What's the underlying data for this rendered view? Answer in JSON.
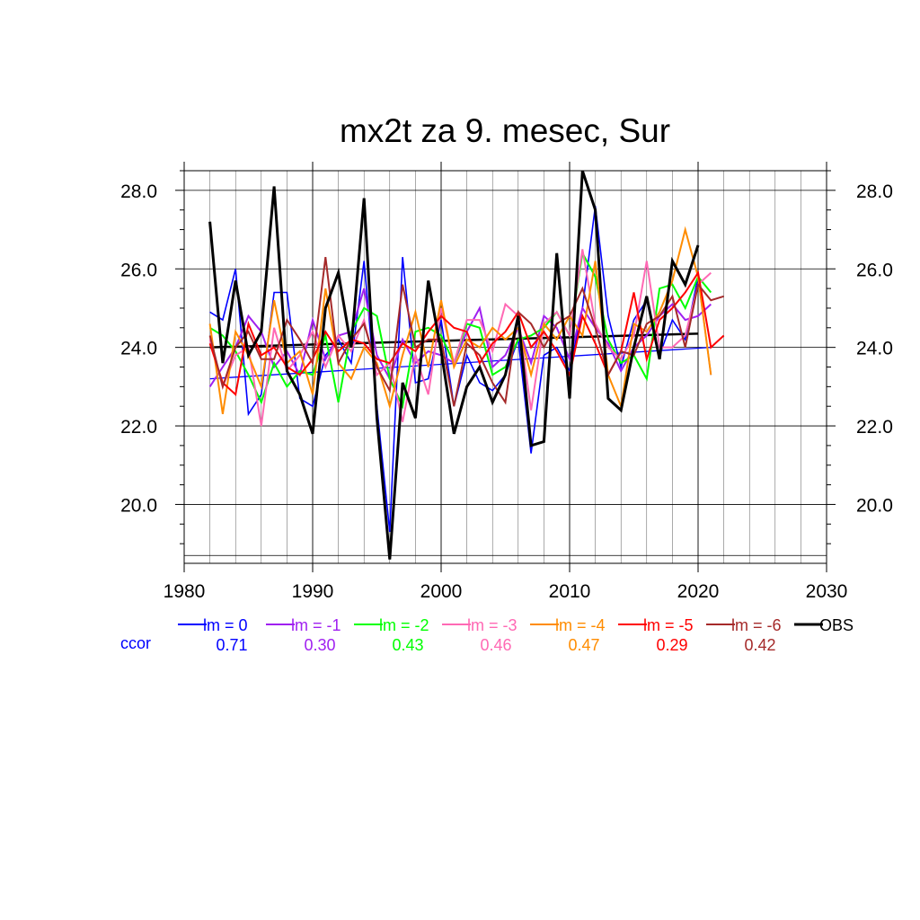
{
  "chart_data": {
    "type": "line",
    "title": "mx2t za 9. mesec, Sur",
    "xlabel": "",
    "ylabel": "",
    "xlim": [
      1980,
      2030
    ],
    "ylim": [
      18.5,
      28.5
    ],
    "x_ticks": [
      "1980",
      "1990",
      "2000",
      "2010",
      "2020",
      "2030"
    ],
    "y_ticks": [
      "20.0",
      "22.0",
      "24.0",
      "26.0",
      "28.0"
    ],
    "grid": true,
    "legend_placement": "bottom",
    "ccor_label": "ccor",
    "series": [
      {
        "name": "lm = 0",
        "color": "#0000ff",
        "ccor": "0.71",
        "x": [
          1982,
          1983,
          1984,
          1985,
          1986,
          1987,
          1988,
          1989,
          1990,
          1991,
          1992,
          1993,
          1994,
          1995,
          1996,
          1997,
          1998,
          1999,
          2000,
          2001,
          2002,
          2003,
          2004,
          2005,
          2006,
          2007,
          2008,
          2009,
          2010,
          2011,
          2012,
          2013,
          2014,
          2015,
          2016,
          2017,
          2018,
          2019,
          2020,
          2021
        ],
        "values": [
          24.9,
          24.7,
          26.0,
          22.3,
          22.8,
          25.4,
          25.4,
          22.7,
          22.5,
          23.8,
          24.2,
          23.6,
          26.2,
          22.5,
          19.3,
          26.3,
          23.1,
          23.2,
          24.7,
          22.5,
          23.8,
          23.1,
          22.9,
          23.3,
          24.2,
          21.3,
          23.8,
          24.0,
          23.4,
          25.0,
          27.6,
          24.8,
          23.5,
          24.7,
          25.2,
          23.8,
          24.7,
          24.2,
          25.8,
          23.3
        ]
      },
      {
        "name": "lm = -1",
        "color": "#a020f0",
        "ccor": "0.30",
        "x": [
          1982,
          1983,
          1984,
          1985,
          1986,
          1987,
          1988,
          1989,
          1990,
          1991,
          1992,
          1993,
          1994,
          1995,
          1996,
          1997,
          1998,
          1999,
          2000,
          2001,
          2002,
          2003,
          2004,
          2005,
          2006,
          2007,
          2008,
          2009,
          2010,
          2011,
          2012,
          2013,
          2014,
          2015,
          2016,
          2017,
          2018,
          2019,
          2020,
          2021
        ],
        "values": [
          23.0,
          23.5,
          24.0,
          24.8,
          24.4,
          23.5,
          23.9,
          23.3,
          24.7,
          23.7,
          24.3,
          24.4,
          25.5,
          23.8,
          23.2,
          24.2,
          23.6,
          23.9,
          23.8,
          23.6,
          24.4,
          25.0,
          23.5,
          23.8,
          24.5,
          23.6,
          24.8,
          24.5,
          23.7,
          25.0,
          24.5,
          24.1,
          23.4,
          24.0,
          24.3,
          24.8,
          25.1,
          24.7,
          24.8,
          25.1
        ]
      },
      {
        "name": "lm = -2",
        "color": "#00ff00",
        "ccor": "0.43",
        "x": [
          1982,
          1983,
          1984,
          1985,
          1986,
          1987,
          1988,
          1989,
          1990,
          1991,
          1992,
          1993,
          1994,
          1995,
          1996,
          1997,
          1998,
          1999,
          2000,
          2001,
          2002,
          2003,
          2004,
          2005,
          2006,
          2007,
          2008,
          2009,
          2010,
          2011,
          2012,
          2013,
          2014,
          2015,
          2016,
          2017,
          2018,
          2019,
          2020,
          2021
        ],
        "values": [
          24.5,
          24.3,
          23.9,
          23.3,
          22.6,
          23.6,
          23.0,
          23.4,
          23.3,
          24.3,
          22.6,
          24.4,
          25.0,
          24.8,
          23.2,
          22.5,
          24.4,
          24.5,
          24.3,
          23.6,
          24.6,
          24.5,
          23.3,
          23.5,
          24.2,
          24.3,
          24.5,
          24.9,
          24.3,
          26.4,
          25.8,
          24.2,
          23.6,
          23.8,
          23.2,
          25.5,
          25.6,
          25.0,
          25.8,
          25.4
        ]
      },
      {
        "name": "lm = -3",
        "color": "#ff69b4",
        "ccor": "0.46",
        "x": [
          1982,
          1983,
          1984,
          1985,
          1986,
          1987,
          1988,
          1989,
          1990,
          1991,
          1992,
          1993,
          1994,
          1995,
          1996,
          1997,
          1998,
          1999,
          2000,
          2001,
          2002,
          2003,
          2004,
          2005,
          2006,
          2007,
          2008,
          2009,
          2010,
          2011,
          2012,
          2013,
          2014,
          2015,
          2016,
          2017,
          2018,
          2019,
          2020,
          2021
        ],
        "values": [
          24.2,
          23.0,
          23.8,
          24.0,
          22.0,
          24.5,
          23.4,
          23.8,
          24.4,
          23.5,
          24.3,
          23.9,
          24.7,
          23.3,
          23.6,
          22.1,
          23.8,
          22.8,
          25.0,
          23.6,
          24.7,
          24.7,
          23.9,
          25.1,
          24.8,
          22.4,
          24.6,
          24.9,
          24.3,
          26.5,
          24.6,
          24.0,
          23.7,
          24.3,
          26.2,
          24.0,
          24.0,
          24.3,
          25.6,
          25.9
        ]
      },
      {
        "name": "lm = -4",
        "color": "#ff8c00",
        "ccor": "0.47",
        "x": [
          1982,
          1983,
          1984,
          1985,
          1986,
          1987,
          1988,
          1989,
          1990,
          1991,
          1992,
          1993,
          1994,
          1995,
          1996,
          1997,
          1998,
          1999,
          2000,
          2001,
          2002,
          2003,
          2004,
          2005,
          2006,
          2007,
          2008,
          2009,
          2010,
          2011,
          2012,
          2013,
          2014,
          2015,
          2016,
          2017,
          2018,
          2019,
          2020,
          2021
        ],
        "values": [
          24.6,
          22.3,
          24.4,
          23.8,
          23.0,
          25.2,
          23.6,
          23.9,
          22.8,
          25.5,
          23.6,
          23.2,
          24.0,
          23.6,
          22.5,
          23.8,
          24.9,
          23.5,
          25.2,
          23.5,
          24.2,
          24.0,
          24.5,
          24.2,
          24.5,
          23.3,
          24.6,
          24.2,
          24.8,
          24.3,
          26.2,
          23.3,
          22.5,
          24.6,
          24.4,
          24.9,
          25.7,
          27.0,
          25.8,
          23.3
        ]
      },
      {
        "name": "lm = -5",
        "color": "#ff0000",
        "ccor": "0.29",
        "x": [
          1982,
          1983,
          1984,
          1985,
          1986,
          1987,
          1988,
          1989,
          1990,
          1991,
          1992,
          1993,
          1994,
          1995,
          1996,
          1997,
          1998,
          1999,
          2000,
          2001,
          2002,
          2003,
          2004,
          2005,
          2006,
          2007,
          2008,
          2009,
          2010,
          2011,
          2012,
          2013,
          2014,
          2015,
          2016,
          2017,
          2018,
          2019,
          2020,
          2021,
          2022
        ],
        "values": [
          24.1,
          23.1,
          22.8,
          24.6,
          23.8,
          24.0,
          23.5,
          23.3,
          23.7,
          24.4,
          23.9,
          24.2,
          24.1,
          23.7,
          23.6,
          24.1,
          23.9,
          24.4,
          24.8,
          24.5,
          24.4,
          23.6,
          24.1,
          24.4,
          24.9,
          24.0,
          24.4,
          23.9,
          23.3,
          24.8,
          24.1,
          23.3,
          23.9,
          25.4,
          23.7,
          24.7,
          25.0,
          25.4,
          25.9,
          24.0,
          24.3
        ]
      },
      {
        "name": "lm = -6",
        "color": "#a52a2a",
        "ccor": "0.42",
        "x": [
          1982,
          1983,
          1984,
          1985,
          1986,
          1987,
          1988,
          1989,
          1990,
          1991,
          1992,
          1993,
          1994,
          1995,
          1996,
          1997,
          1998,
          1999,
          2000,
          2001,
          2002,
          2003,
          2004,
          2005,
          2006,
          2007,
          2008,
          2009,
          2010,
          2011,
          2012,
          2013,
          2014,
          2015,
          2016,
          2017,
          2018,
          2019,
          2020,
          2021,
          2022
        ],
        "values": [
          24.3,
          23.0,
          24.0,
          24.4,
          23.7,
          23.7,
          24.7,
          24.2,
          23.6,
          26.3,
          23.6,
          24.2,
          24.6,
          23.5,
          22.9,
          25.6,
          24.0,
          24.2,
          24.2,
          22.5,
          24.1,
          23.8,
          23.1,
          22.6,
          24.9,
          24.6,
          24.0,
          24.6,
          24.8,
          25.5,
          24.5,
          23.3,
          23.9,
          23.8,
          24.6,
          24.8,
          25.3,
          24.0,
          25.6,
          25.2,
          25.3
        ]
      },
      {
        "name": "OBS",
        "color": "#000000",
        "ccor": "",
        "x": [
          1982,
          1983,
          1984,
          1985,
          1986,
          1987,
          1988,
          1989,
          1990,
          1991,
          1992,
          1993,
          1994,
          1995,
          1996,
          1997,
          1998,
          1999,
          2000,
          2001,
          2002,
          2003,
          2004,
          2005,
          2006,
          2007,
          2008,
          2009,
          2010,
          2011,
          2012,
          2013,
          2014,
          2015,
          2016,
          2017,
          2018,
          2019,
          2020
        ],
        "values": [
          27.2,
          23.6,
          25.7,
          23.8,
          24.4,
          28.1,
          23.4,
          22.8,
          21.8,
          25.0,
          25.9,
          24.0,
          27.8,
          22.2,
          18.6,
          23.1,
          22.2,
          25.7,
          23.9,
          21.8,
          23.0,
          23.5,
          22.6,
          23.3,
          24.8,
          21.5,
          21.6,
          26.4,
          22.7,
          28.5,
          27.5,
          22.7,
          22.4,
          24.0,
          25.3,
          23.7,
          26.2,
          25.6,
          26.6
        ]
      }
    ],
    "trend_lines": [
      {
        "name": "lm = 0 trend",
        "color": "#0000ff",
        "x": [
          1982,
          2021
        ],
        "values": [
          23.2,
          24.0
        ]
      },
      {
        "name": "OBS trend",
        "color": "#000000",
        "x": [
          1982,
          2020
        ],
        "values": [
          24.0,
          24.35
        ]
      }
    ]
  }
}
